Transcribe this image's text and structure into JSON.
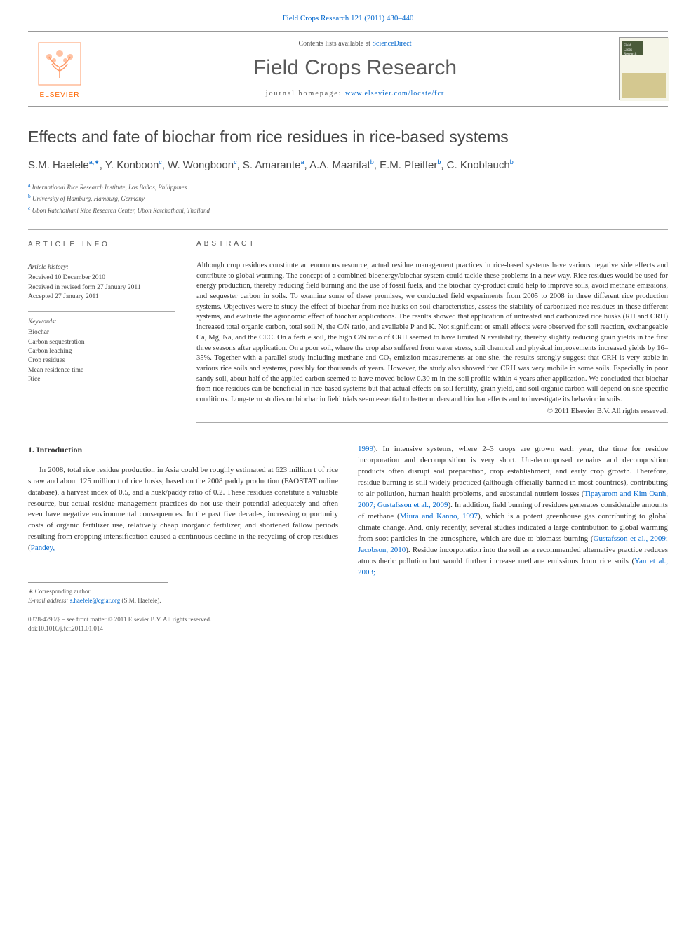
{
  "journal_ref": "Field Crops Research 121 (2011) 430–440",
  "header": {
    "contents_prefix": "Contents lists available at ",
    "contents_link": "ScienceDirect",
    "journal_name": "Field Crops Research",
    "homepage_prefix": "journal homepage: ",
    "homepage_url": "www.elsevier.com/locate/fcr",
    "publisher": "ELSEVIER"
  },
  "title": "Effects and fate of biochar from rice residues in rice-based systems",
  "authors_html": "S.M. Haefele<sup>a,∗</sup>, Y. Konboon<sup>c</sup>, W. Wongboon<sup>c</sup>, S. Amarante<sup>a</sup>, A.A. Maarifat<sup>b</sup>, E.M. Pfeiffer<sup>b</sup>, C. Knoblauch<sup>b</sup>",
  "affiliations": [
    {
      "key": "a",
      "text": "International Rice Research Institute, Los Baños, Philippines"
    },
    {
      "key": "b",
      "text": "University of Hamburg, Hamburg, Germany"
    },
    {
      "key": "c",
      "text": "Ubon Ratchathani Rice Research Center, Ubon Ratchathani, Thailand"
    }
  ],
  "info": {
    "heading": "article info",
    "history_label": "Article history:",
    "history": [
      "Received 10 December 2010",
      "Received in revised form 27 January 2011",
      "Accepted 27 January 2011"
    ],
    "keywords_label": "Keywords:",
    "keywords": [
      "Biochar",
      "Carbon sequestration",
      "Carbon leaching",
      "Crop residues",
      "Mean residence time",
      "Rice"
    ]
  },
  "abstract": {
    "heading": "abstract",
    "text": "Although crop residues constitute an enormous resource, actual residue management practices in rice-based systems have various negative side effects and contribute to global warming. The concept of a combined bioenergy/biochar system could tackle these problems in a new way. Rice residues would be used for energy production, thereby reducing field burning and the use of fossil fuels, and the biochar by-product could help to improve soils, avoid methane emissions, and sequester carbon in soils. To examine some of these promises, we conducted field experiments from 2005 to 2008 in three different rice production systems. Objectives were to study the effect of biochar from rice husks on soil characteristics, assess the stability of carbonized rice residues in these different systems, and evaluate the agronomic effect of biochar applications. The results showed that application of untreated and carbonized rice husks (RH and CRH) increased total organic carbon, total soil N, the C/N ratio, and available P and K. Not significant or small effects were observed for soil reaction, exchangeable Ca, Mg, Na, and the CEC. On a fertile soil, the high C/N ratio of CRH seemed to have limited N availability, thereby slightly reducing grain yields in the first three seasons after application. On a poor soil, where the crop also suffered from water stress, soil chemical and physical improvements increased yields by 16–35%. Together with a parallel study including methane and CO₂ emission measurements at one site, the results strongly suggest that CRH is very stable in various rice soils and systems, possibly for thousands of years. However, the study also showed that CRH was very mobile in some soils. Especially in poor sandy soil, about half of the applied carbon seemed to have moved below 0.30 m in the soil profile within 4 years after application. We concluded that biochar from rice residues can be beneficial in rice-based systems but that actual effects on soil fertility, grain yield, and soil organic carbon will depend on site-specific conditions. Long-term studies on biochar in field trials seem essential to better understand biochar effects and to investigate its behavior in soils.",
    "copyright": "© 2011 Elsevier B.V. All rights reserved."
  },
  "body": {
    "section_heading": "1. Introduction",
    "col1": "In 2008, total rice residue production in Asia could be roughly estimated at 623 million t of rice straw and about 125 million t of rice husks, based on the 2008 paddy production (FAOSTAT online database), a harvest index of 0.5, and a husk/paddy ratio of 0.2. These residues constitute a valuable resource, but actual residue management practices do not use their potential adequately and often even have negative environmental consequences. In the past five decades, increasing opportunity costs of organic fertilizer use, relatively cheap inorganic fertilizer, and shortened fallow periods resulting from cropping intensification caused a continuous decline in the recycling of crop residues (",
    "col1_cite": "Pandey,",
    "col2_cite_cont": "1999",
    "col2": "). In intensive systems, where 2–3 crops are grown each year, the time for residue incorporation and decomposition is very short. Un-decomposed remains and decomposition products often disrupt soil preparation, crop establishment, and early crop growth. Therefore, residue burning is still widely practiced (although officially banned in most countries), contributing to air pollution, human health problems, and substantial nutrient losses (",
    "col2_cite2": "Tipayarom and Kim Oanh, 2007; Gustafsson et al., 2009",
    "col2b": "). In addition, field burning of residues generates considerable amounts of methane (",
    "col2_cite3": "Miura and Kanno, 1997",
    "col2c": "), which is a potent greenhouse gas contributing to global climate change. And, only recently, several studies indicated a large contribution to global warming from soot particles in the atmosphere, which are due to biomass burning (",
    "col2_cite4": "Gustafsson et al., 2009; Jacobson, 2010",
    "col2d": "). Residue incorporation into the soil as a recommended alternative practice reduces atmospheric pollution but would further increase methane emissions from rice soils (",
    "col2_cite5": "Yan et al., 2003;"
  },
  "corresponding": {
    "marker": "∗ Corresponding author.",
    "email_label": "E-mail address: ",
    "email": "s.haefele@cgiar.org",
    "email_suffix": " (S.M. Haefele)."
  },
  "footer": {
    "line1": "0378-4290/$ – see front matter © 2011 Elsevier B.V. All rights reserved.",
    "line2": "doi:10.1016/j.fcr.2011.01.014"
  }
}
